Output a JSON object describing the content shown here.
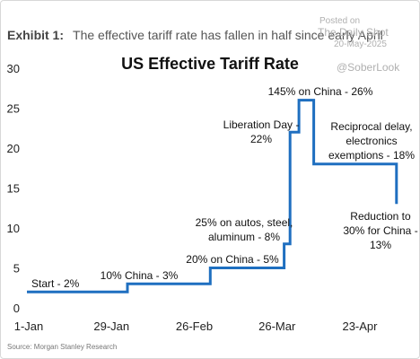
{
  "header": {
    "exhibit_label": "Exhibit 1:",
    "exhibit_text": "The effective tariff rate has fallen in half since early April"
  },
  "watermark": {
    "posted_on": "Posted on",
    "outlet": "The Daily Shot",
    "date": "20-May-2025",
    "handle": "@SoberLook"
  },
  "footer": {
    "source": "Source: Morgan Stanley Research"
  },
  "chart_data": {
    "type": "line",
    "title": "US Effective Tariff Rate",
    "xlabel": "",
    "ylabel": "",
    "xlim": [
      "2025-01-01",
      "2025-05-10"
    ],
    "ylim": [
      0,
      30
    ],
    "x_ticks": [
      "1-Jan",
      "29-Jan",
      "26-Feb",
      "26-Mar",
      "23-Apr"
    ],
    "y_ticks": [
      0,
      5,
      10,
      15,
      20,
      25,
      30
    ],
    "grid": false,
    "line_color": "#1f6fc0",
    "series": [
      {
        "name": "",
        "points": [
          [
            "2025-01-01",
            2
          ],
          [
            "2025-02-04",
            2
          ],
          [
            "2025-02-04",
            3
          ],
          [
            "2025-03-04",
            3
          ],
          [
            "2025-03-04",
            5
          ],
          [
            "2025-03-29",
            5
          ],
          [
            "2025-03-29",
            8
          ],
          [
            "2025-03-31",
            8
          ],
          [
            "2025-03-31",
            22
          ],
          [
            "2025-04-03",
            22
          ],
          [
            "2025-04-03",
            26
          ],
          [
            "2025-04-08",
            26
          ],
          [
            "2025-04-08",
            18
          ],
          [
            "2025-05-06",
            18
          ],
          [
            "2025-05-06",
            13
          ]
        ]
      }
    ],
    "annotations": [
      {
        "lines": [
          "Start - 2%"
        ]
      },
      {
        "lines": [
          "10% China - 3%"
        ]
      },
      {
        "lines": [
          "20% on China - 5%"
        ]
      },
      {
        "lines": [
          "25% on autos, steel,",
          "aluminum - 8%"
        ]
      },
      {
        "lines": [
          "Liberation Day -",
          "22%"
        ]
      },
      {
        "lines": [
          "145% on China - 26%"
        ]
      },
      {
        "lines": [
          "Reciprocal delay,",
          "electronics",
          "exemptions - 18%"
        ]
      },
      {
        "lines": [
          "Reduction to",
          "30% for China -",
          "13%"
        ]
      }
    ]
  }
}
